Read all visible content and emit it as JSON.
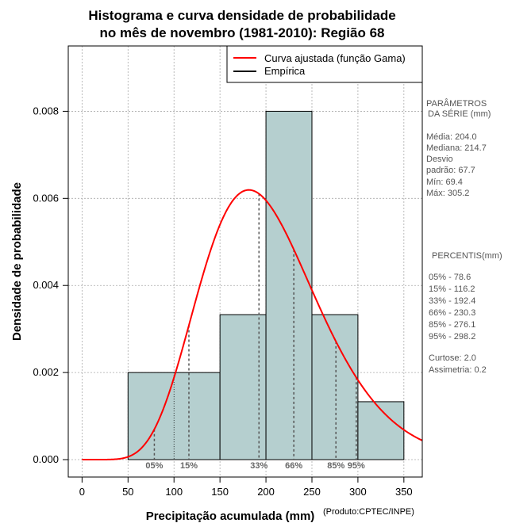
{
  "chart_data": {
    "type": "bar",
    "title_line1": "Histograma e curva densidade de probabilidade",
    "title_line2": "no mês de novembro (1981-2010): Região 68",
    "xlabel": "Precipitação acumulada (mm)",
    "ylabel": "Densidade de probabilidade",
    "credit": "(Produto:CPTEC/INPE)",
    "xlim": [
      -15,
      370
    ],
    "ylim": [
      -0.0004,
      0.0095
    ],
    "x_ticks": [
      "0",
      "50",
      "100",
      "150",
      "200",
      "250",
      "300",
      "350"
    ],
    "x_tick_values": [
      0,
      50,
      100,
      150,
      200,
      250,
      300,
      350
    ],
    "y_ticks": [
      "0.000",
      "0.002",
      "0.004",
      "0.006",
      "0.008"
    ],
    "y_tick_values": [
      0,
      0.002,
      0.004,
      0.006,
      0.008
    ],
    "grid": true,
    "bins": [
      {
        "start": 50,
        "end": 150,
        "density": 0.002
      },
      {
        "start": 150,
        "end": 200,
        "density": 0.00333
      },
      {
        "start": 200,
        "end": 250,
        "density": 0.008
      },
      {
        "start": 250,
        "end": 300,
        "density": 0.00333
      },
      {
        "start": 300,
        "end": 350,
        "density": 0.00133
      }
    ],
    "gamma_fit": {
      "shape": 9.1,
      "scale": 22.4
    },
    "legend": [
      {
        "label": "Curva ajustada (função Gama)",
        "color": "#ff0000"
      },
      {
        "label": "Empírica",
        "color": "#000000"
      }
    ],
    "percentile_markers": [
      {
        "label": "05%",
        "value": 78.6
      },
      {
        "label": "15%",
        "value": 116.2
      },
      {
        "label": "33%",
        "value": 192.4
      },
      {
        "label": "66%",
        "value": 230.3
      },
      {
        "label": "85%",
        "value": 276.1
      },
      {
        "label": "95%",
        "value": 298.2
      }
    ],
    "colors": {
      "bar": "#b5cfcf",
      "curve": "#ff0000",
      "grid": "#aaaaaa",
      "marker": "#555555"
    }
  },
  "side_panel": {
    "params_title_1": "PARÂMETROS",
    "params_title_2": "DA SÉRIE (mm)",
    "media": "Média:  204.0",
    "mediana": "Mediana:  214.7",
    "desvio_1": "Desvio",
    "desvio_2": "padrão:  67.7",
    "min": "Mín:  69.4",
    "max": "Máx:   305.2",
    "percentis_title": "PERCENTIS(mm)",
    "p05": "05% -   78.6",
    "p15": "15% -   116.2",
    "p33": "33% -   192.4",
    "p66": "66% -   230.3",
    "p85": "85% -   276.1",
    "p95": "95% -   298.2",
    "curtose": "Curtose:  2.0",
    "assimetria": "Assimetria:  0.2"
  }
}
